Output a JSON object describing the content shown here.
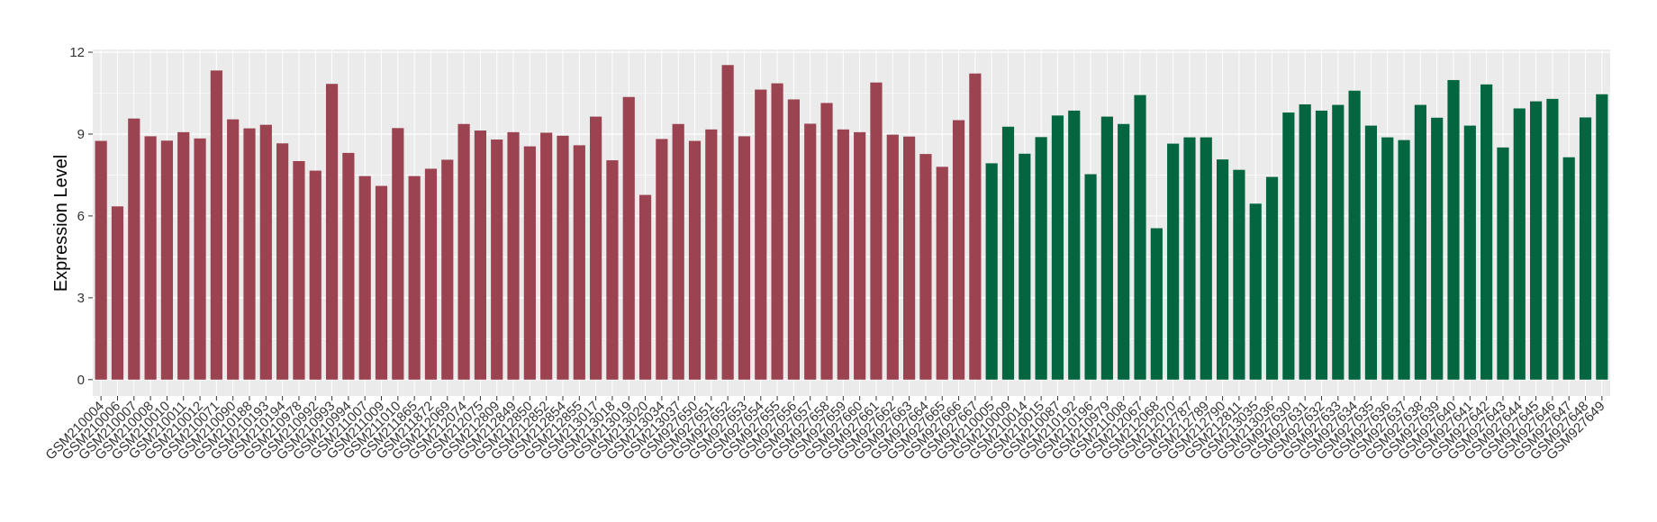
{
  "chart_data": {
    "type": "bar",
    "title": "",
    "xlabel": "",
    "ylabel": "Expression Level",
    "ylim": [
      -0.6,
      12.1
    ],
    "yticks": [
      0,
      3,
      6,
      9,
      12
    ],
    "grid": true,
    "legend": "none",
    "colors": {
      "group1": "#9b4350",
      "group2": "#046641",
      "panel": "#ebebeb",
      "gridline": "#ffffff"
    },
    "categories": [
      "GSM210004",
      "GSM210006",
      "GSM210007",
      "GSM210008",
      "GSM210010",
      "GSM210011",
      "GSM210012",
      "GSM210071",
      "GSM210090",
      "GSM210188",
      "GSM210193",
      "GSM210194",
      "GSM210978",
      "GSM210992",
      "GSM210993",
      "GSM210994",
      "GSM211007",
      "GSM211009",
      "GSM211010",
      "GSM211865",
      "GSM211872",
      "GSM212069",
      "GSM212074",
      "GSM212075",
      "GSM212809",
      "GSM212849",
      "GSM212850",
      "GSM212852",
      "GSM212854",
      "GSM212855",
      "GSM213017",
      "GSM213018",
      "GSM213019",
      "GSM213020",
      "GSM213034",
      "GSM213037",
      "GSM927650",
      "GSM927651",
      "GSM927652",
      "GSM927653",
      "GSM927654",
      "GSM927655",
      "GSM927656",
      "GSM927657",
      "GSM927658",
      "GSM927659",
      "GSM927660",
      "GSM927661",
      "GSM927662",
      "GSM927663",
      "GSM927664",
      "GSM927665",
      "GSM927666",
      "GSM927667",
      "GSM210005",
      "GSM210009",
      "GSM210014",
      "GSM210015",
      "GSM210087",
      "GSM210192",
      "GSM210196",
      "GSM210979",
      "GSM211008",
      "GSM212067",
      "GSM212068",
      "GSM212070",
      "GSM212787",
      "GSM212789",
      "GSM212790",
      "GSM212811",
      "GSM213035",
      "GSM213036",
      "GSM927630",
      "GSM927631",
      "GSM927632",
      "GSM927633",
      "GSM927634",
      "GSM927635",
      "GSM927636",
      "GSM927637",
      "GSM927638",
      "GSM927639",
      "GSM927640",
      "GSM927641",
      "GSM927642",
      "GSM927643",
      "GSM927644",
      "GSM927645",
      "GSM927646",
      "GSM927647",
      "GSM927648",
      "GSM927649"
    ],
    "values": [
      8.75,
      6.35,
      9.57,
      8.92,
      8.76,
      9.07,
      8.84,
      11.33,
      9.54,
      9.21,
      9.34,
      8.66,
      8.01,
      7.66,
      10.84,
      8.31,
      7.46,
      7.1,
      9.22,
      7.46,
      7.73,
      8.06,
      9.37,
      9.13,
      8.8,
      9.07,
      8.55,
      9.05,
      8.94,
      8.59,
      9.64,
      8.04,
      10.36,
      6.77,
      8.82,
      9.37,
      8.75,
      9.17,
      11.53,
      8.92,
      10.63,
      10.86,
      10.27,
      9.38,
      10.14,
      9.17,
      9.07,
      10.89,
      8.98,
      8.91,
      8.27,
      7.8,
      9.51,
      11.22,
      7.93,
      9.27,
      8.28,
      8.89,
      9.68,
      9.86,
      7.53,
      9.64,
      9.37,
      10.43,
      5.55,
      8.65,
      8.88,
      8.88,
      8.07,
      7.69,
      6.45,
      7.43,
      9.79,
      10.09,
      9.86,
      10.07,
      10.59,
      9.31,
      8.88,
      8.78,
      10.07,
      9.6,
      10.98,
      9.31,
      10.82,
      8.51,
      9.94,
      10.2,
      10.29,
      8.15,
      9.61,
      10.46
    ],
    "group_split_index": 54
  }
}
